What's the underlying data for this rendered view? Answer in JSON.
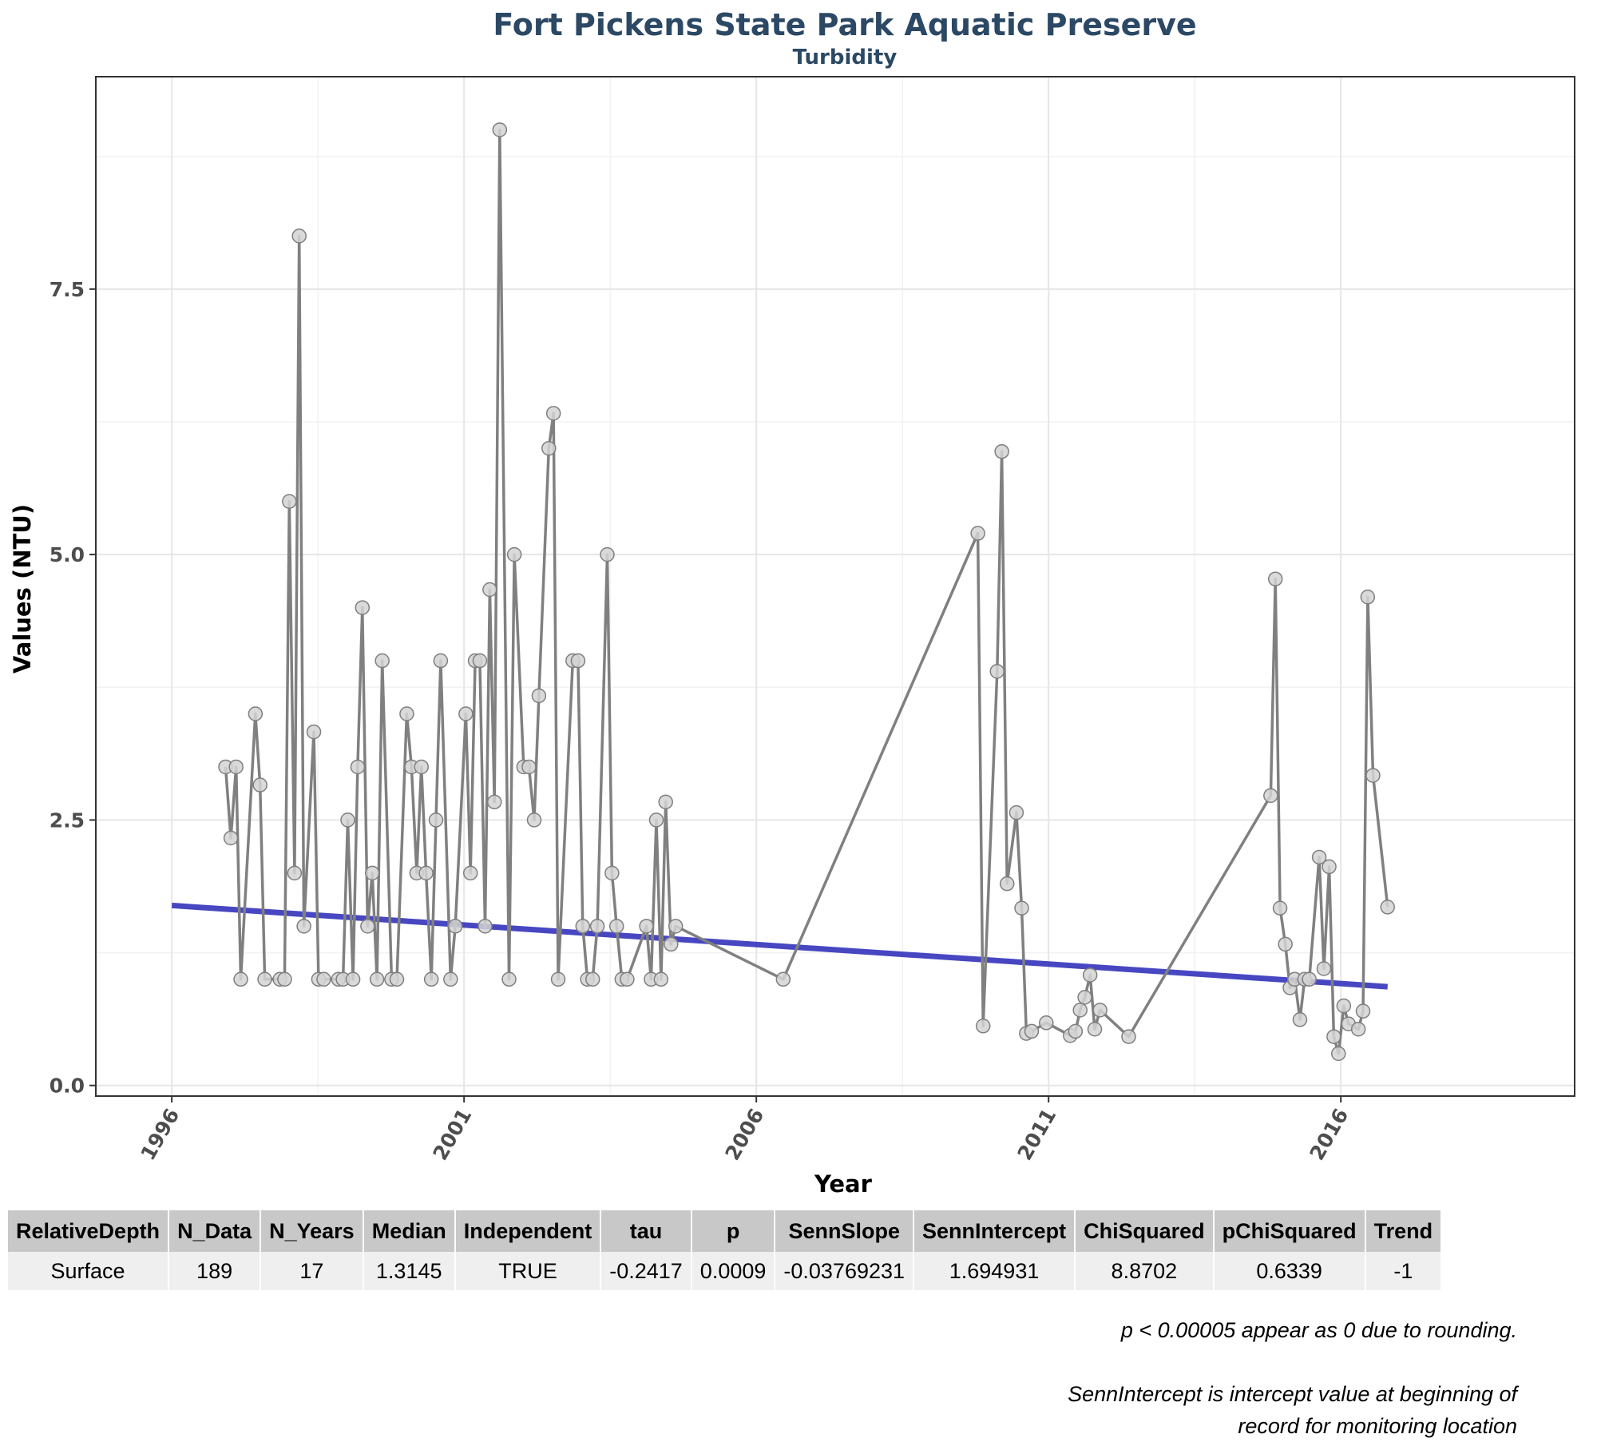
{
  "chart_data": {
    "type": "line",
    "title": "Fort Pickens State Park Aquatic Preserve",
    "subtitle": "Turbidity",
    "xlabel": "Year",
    "ylabel": "Values (NTU)",
    "xlim": [
      1994.7,
      2020.0
    ],
    "ylim": [
      -0.1,
      9.5
    ],
    "x_ticks": [
      1996,
      2001,
      2006,
      2011,
      2016
    ],
    "y_ticks": [
      0.0,
      2.5,
      5.0,
      7.5
    ],
    "y_tick_labels": [
      "0.0",
      "2.5",
      "5.0",
      "7.5"
    ],
    "grid": true,
    "colors": {
      "line": "#808080",
      "point_fill": "#d3d3d3",
      "point_stroke": "#7f7f7f",
      "trend": "#3333bb",
      "title": "#2b4864"
    },
    "points": [
      [
        1996.92,
        3.0
      ],
      [
        1997.01,
        2.33
      ],
      [
        1997.1,
        3.0
      ],
      [
        1997.18,
        1.0
      ],
      [
        1997.43,
        3.5
      ],
      [
        1997.51,
        2.83
      ],
      [
        1997.59,
        1.0
      ],
      [
        1997.85,
        1.0
      ],
      [
        1997.93,
        1.0
      ],
      [
        1998.01,
        5.5
      ],
      [
        1998.1,
        2.0
      ],
      [
        1998.18,
        8.0
      ],
      [
        1998.26,
        1.5
      ],
      [
        1998.43,
        3.33
      ],
      [
        1998.51,
        1.0
      ],
      [
        1998.6,
        1.0
      ],
      [
        1998.85,
        1.0
      ],
      [
        1998.93,
        1.0
      ],
      [
        1999.01,
        2.5
      ],
      [
        1999.1,
        1.0
      ],
      [
        1999.18,
        3.0
      ],
      [
        1999.26,
        4.5
      ],
      [
        1999.35,
        1.5
      ],
      [
        1999.43,
        2.0
      ],
      [
        1999.51,
        1.0
      ],
      [
        1999.6,
        4.0
      ],
      [
        1999.76,
        1.0
      ],
      [
        1999.85,
        1.0
      ],
      [
        2000.02,
        3.5
      ],
      [
        2000.1,
        3.0
      ],
      [
        2000.19,
        2.0
      ],
      [
        2000.27,
        3.0
      ],
      [
        2000.35,
        2.0
      ],
      [
        2000.44,
        1.0
      ],
      [
        2000.52,
        2.5
      ],
      [
        2000.6,
        4.0
      ],
      [
        2000.77,
        1.0
      ],
      [
        2000.85,
        1.5
      ],
      [
        2001.03,
        3.5
      ],
      [
        2001.11,
        2.0
      ],
      [
        2001.19,
        4.0
      ],
      [
        2001.27,
        4.0
      ],
      [
        2001.36,
        1.5
      ],
      [
        2001.44,
        4.67
      ],
      [
        2001.52,
        2.67
      ],
      [
        2001.61,
        9.0
      ],
      [
        2001.77,
        1.0
      ],
      [
        2001.86,
        5.0
      ],
      [
        2002.02,
        3.0
      ],
      [
        2002.11,
        3.0
      ],
      [
        2002.2,
        2.5
      ],
      [
        2002.28,
        3.67
      ],
      [
        2002.45,
        6.0
      ],
      [
        2002.53,
        6.33
      ],
      [
        2002.61,
        1.0
      ],
      [
        2002.86,
        4.0
      ],
      [
        2002.95,
        4.0
      ],
      [
        2003.03,
        1.5
      ],
      [
        2003.11,
        1.0
      ],
      [
        2003.2,
        1.0
      ],
      [
        2003.28,
        1.5
      ],
      [
        2003.45,
        5.0
      ],
      [
        2003.53,
        2.0
      ],
      [
        2003.61,
        1.5
      ],
      [
        2003.7,
        1.0
      ],
      [
        2003.79,
        1.0
      ],
      [
        2004.12,
        1.5
      ],
      [
        2004.2,
        1.0
      ],
      [
        2004.29,
        2.5
      ],
      [
        2004.37,
        1.0
      ],
      [
        2004.45,
        2.67
      ],
      [
        2004.54,
        1.33
      ],
      [
        2004.62,
        1.5
      ],
      [
        2006.46,
        1.0
      ],
      [
        2009.79,
        5.2
      ],
      [
        2009.88,
        0.56
      ],
      [
        2010.12,
        3.9
      ],
      [
        2010.2,
        5.97
      ],
      [
        2010.29,
        1.9
      ],
      [
        2010.45,
        2.57
      ],
      [
        2010.54,
        1.67
      ],
      [
        2010.62,
        0.49
      ],
      [
        2010.71,
        0.51
      ],
      [
        2010.96,
        0.59
      ],
      [
        2011.37,
        0.47
      ],
      [
        2011.46,
        0.51
      ],
      [
        2011.54,
        0.71
      ],
      [
        2011.62,
        0.83
      ],
      [
        2011.71,
        1.04
      ],
      [
        2011.79,
        0.53
      ],
      [
        2011.88,
        0.71
      ],
      [
        2012.37,
        0.46
      ],
      [
        2014.8,
        2.73
      ],
      [
        2014.88,
        4.77
      ],
      [
        2014.96,
        1.67
      ],
      [
        2015.05,
        1.33
      ],
      [
        2015.13,
        0.92
      ],
      [
        2015.21,
        1.0
      ],
      [
        2015.3,
        0.62
      ],
      [
        2015.38,
        1.0
      ],
      [
        2015.46,
        1.0
      ],
      [
        2015.63,
        2.15
      ],
      [
        2015.71,
        1.1
      ],
      [
        2015.8,
        2.06
      ],
      [
        2015.88,
        0.46
      ],
      [
        2015.96,
        0.3
      ],
      [
        2016.05,
        0.75
      ],
      [
        2016.13,
        0.58
      ],
      [
        2016.3,
        0.53
      ],
      [
        2016.38,
        0.7
      ],
      [
        2016.46,
        4.6
      ],
      [
        2016.55,
        2.92
      ],
      [
        2016.8,
        1.68
      ]
    ],
    "trend_line": {
      "x": [
        1996.0,
        2016.8
      ],
      "y": [
        1.694931,
        0.93
      ]
    }
  },
  "stats_table": {
    "headers": [
      "RelativeDepth",
      "N_Data",
      "N_Years",
      "Median",
      "Independent",
      "tau",
      "p",
      "SennSlope",
      "SennIntercept",
      "ChiSquared",
      "pChiSquared",
      "Trend"
    ],
    "rows": [
      [
        "Surface",
        "189",
        "17",
        "1.3145",
        "TRUE",
        "-0.2417",
        "0.0009",
        "-0.03769231",
        "1.694931",
        "8.8702",
        "0.6339",
        "-1"
      ]
    ]
  },
  "notes": {
    "rounding": "p < 0.00005 appear as 0 due to rounding.",
    "intercept_line1": "SennIntercept is intercept value at beginning of",
    "intercept_line2": "record for monitoring location"
  }
}
